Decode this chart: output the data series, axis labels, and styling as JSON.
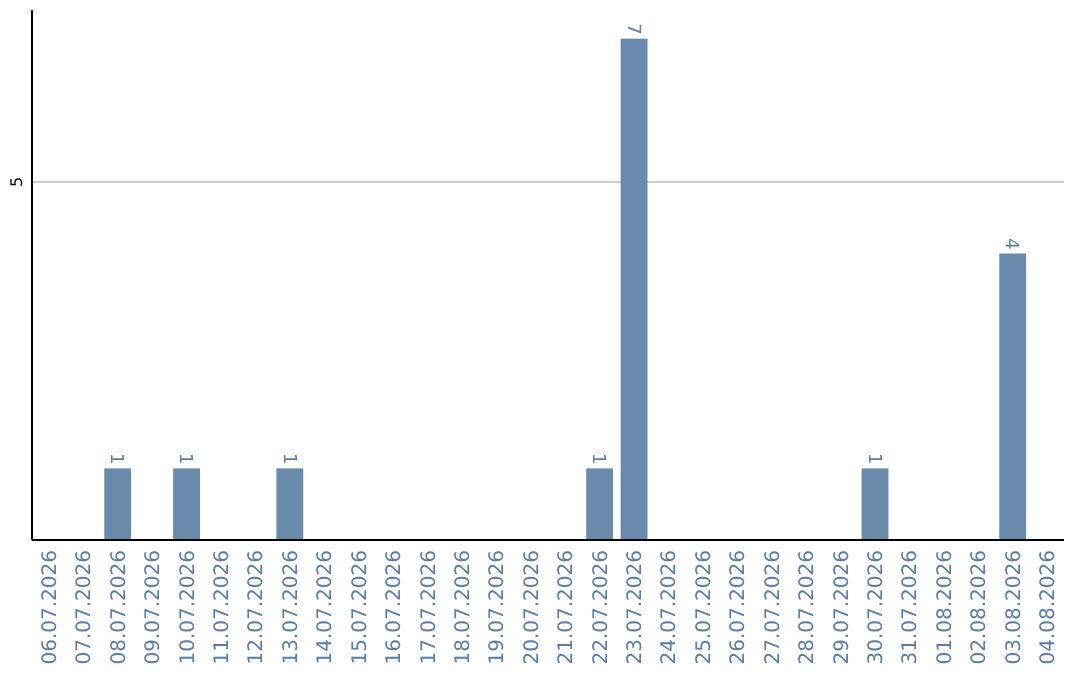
{
  "chart_data": {
    "type": "bar",
    "categories": [
      "06.07.2026",
      "07.07.2026",
      "08.07.2026",
      "09.07.2026",
      "10.07.2026",
      "11.07.2026",
      "12.07.2026",
      "13.07.2026",
      "14.07.2026",
      "15.07.2026",
      "16.07.2026",
      "17.07.2026",
      "18.07.2026",
      "19.07.2026",
      "20.07.2026",
      "21.07.2026",
      "22.07.2026",
      "23.07.2026",
      "24.07.2026",
      "25.07.2026",
      "26.07.2026",
      "27.07.2026",
      "28.07.2026",
      "29.07.2026",
      "30.07.2026",
      "31.07.2026",
      "01.08.2026",
      "02.08.2026",
      "03.08.2026",
      "04.08.2026"
    ],
    "values": [
      null,
      null,
      1,
      null,
      1,
      null,
      null,
      1,
      null,
      null,
      null,
      null,
      null,
      null,
      null,
      null,
      1,
      7,
      null,
      null,
      null,
      null,
      null,
      null,
      1,
      null,
      null,
      null,
      4,
      null
    ],
    "color": "#6a8aab",
    "ylim": [
      0,
      7.4
    ],
    "yticks": [
      5
    ],
    "grid": "y",
    "data_labels": true
  }
}
